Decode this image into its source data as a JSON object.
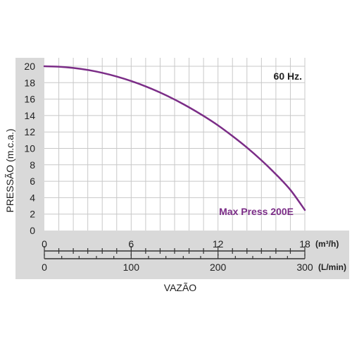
{
  "chart_data": {
    "type": "line",
    "ylabel": "PRESSÃO (m.c.a.)",
    "xlabel": "VAZÃO",
    "annotation": "60 Hz.",
    "ylim": [
      0,
      20
    ],
    "xlim": [
      0,
      18
    ],
    "yticks": [
      0,
      2,
      4,
      6,
      8,
      10,
      12,
      14,
      16,
      18,
      20
    ],
    "x_axis_primary": {
      "unit": "(m³/h)",
      "ticks": [
        0,
        6,
        12,
        18
      ]
    },
    "x_axis_secondary": {
      "unit": "(L/min)",
      "ticks": [
        0,
        100,
        200,
        300
      ]
    },
    "grid": true,
    "series": [
      {
        "name": "Max Press 200E",
        "color": "#7b2d87",
        "x": [
          0,
          1,
          2,
          3,
          4,
          5,
          6,
          7,
          8,
          9,
          10,
          11,
          12,
          13,
          14,
          15,
          16,
          17,
          18
        ],
        "y": [
          20.0,
          19.95,
          19.8,
          19.55,
          19.2,
          18.75,
          18.2,
          17.55,
          16.8,
          15.95,
          15.0,
          13.95,
          12.8,
          11.5,
          10.1,
          8.55,
          6.85,
          4.95,
          2.5
        ]
      }
    ]
  },
  "colors": {
    "axis_band": "#d9d9d9",
    "grid": "#c8c8c8",
    "text": "#222222"
  }
}
